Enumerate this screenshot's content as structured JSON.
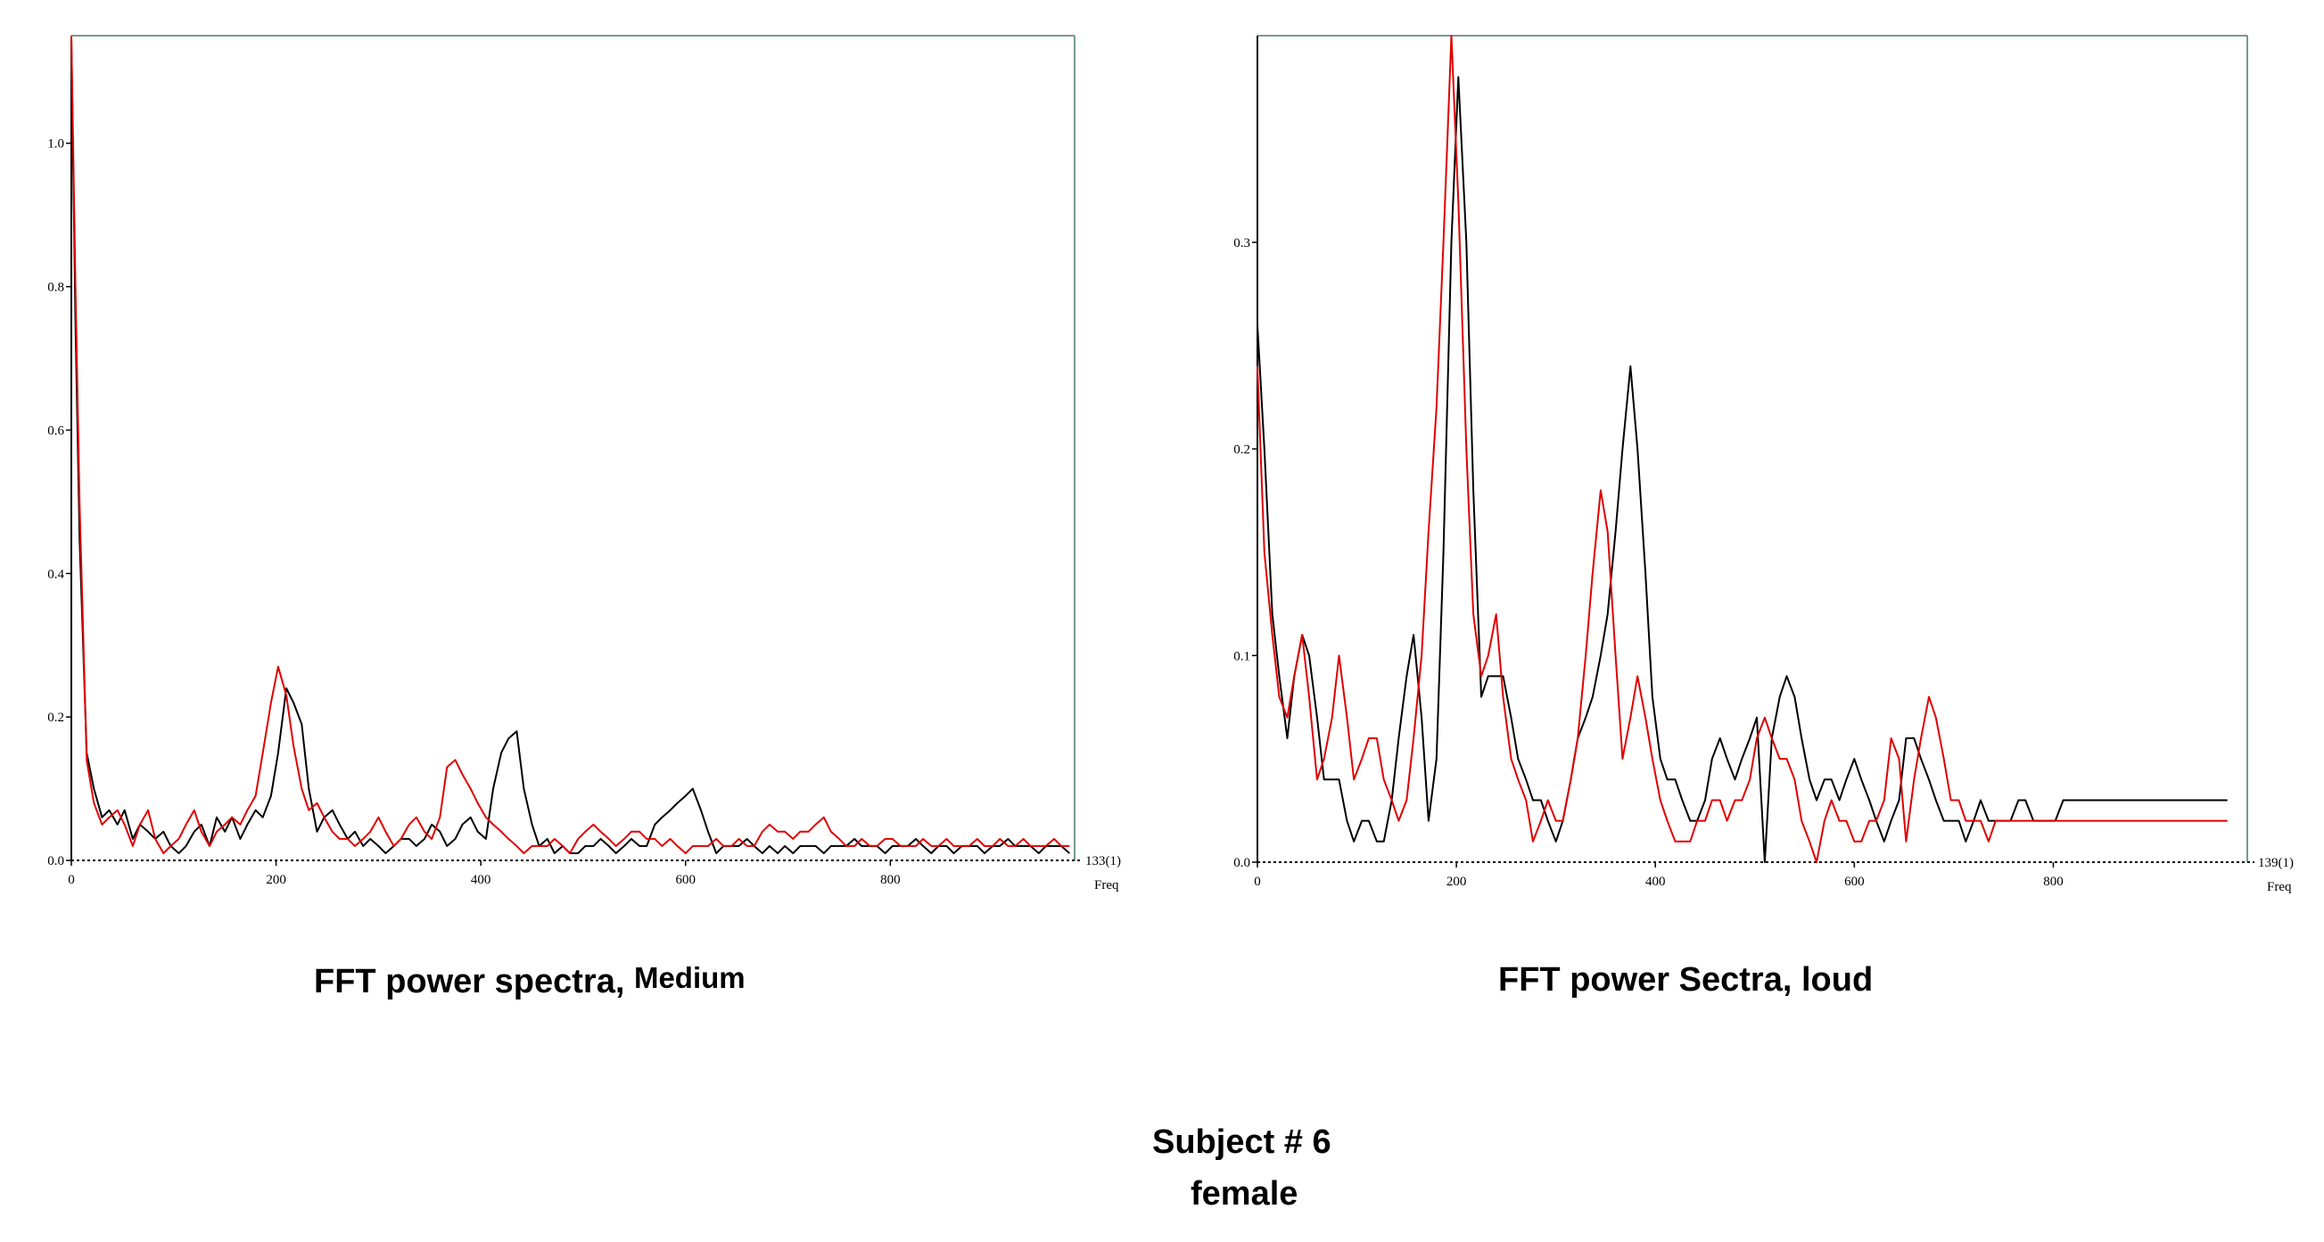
{
  "captions": {
    "left_main": "FFT power spectra,",
    "left_sub": "Medium",
    "right": "FFT power Sectra, loud",
    "subject": "Subject # 6",
    "gender": "female"
  },
  "colors": {
    "series_black": "#000000",
    "series_red": "#e00000",
    "axis": "#4a7a6a"
  },
  "chart_data": [
    {
      "type": "line",
      "caption": "FFT power spectra, Medium",
      "xlabel": "Freq",
      "end_label": "133(1)",
      "xlim": [
        0,
        980
      ],
      "ylim": [
        0,
        1.15
      ],
      "xticks": [
        0,
        200,
        400,
        600,
        800
      ],
      "yticks": [
        0.0,
        0.2,
        0.4,
        0.6,
        0.8,
        1.0
      ],
      "series": [
        {
          "color": "black",
          "x": [
            0,
            4,
            8,
            15,
            22,
            30,
            37,
            45,
            52,
            60,
            67,
            75,
            82,
            90,
            97,
            105,
            112,
            120,
            127,
            135,
            142,
            150,
            157,
            165,
            172,
            180,
            187,
            195,
            202,
            210,
            217,
            225,
            232,
            240,
            247,
            255,
            262,
            270,
            277,
            285,
            292,
            300,
            307,
            315,
            322,
            330,
            337,
            345,
            352,
            360,
            367,
            375,
            382,
            390,
            397,
            405,
            412,
            420,
            427,
            435,
            442,
            450,
            457,
            465,
            472,
            480,
            487,
            495,
            502,
            510,
            517,
            525,
            532,
            540,
            547,
            555,
            562,
            570,
            577,
            585,
            592,
            600,
            607,
            615,
            622,
            630,
            637,
            645,
            652,
            660,
            667,
            675,
            682,
            690,
            697,
            705,
            712,
            720,
            727,
            735,
            742,
            750,
            757,
            765,
            772,
            780,
            787,
            795,
            802,
            810,
            817,
            825,
            832,
            840,
            847,
            855,
            862,
            870,
            877,
            885,
            892,
            900,
            907,
            915,
            922,
            930,
            937,
            945,
            952,
            960,
            967,
            975
          ],
          "y": [
            1.15,
            0.75,
            0.45,
            0.15,
            0.1,
            0.06,
            0.07,
            0.05,
            0.07,
            0.03,
            0.05,
            0.04,
            0.03,
            0.04,
            0.02,
            0.01,
            0.02,
            0.04,
            0.05,
            0.02,
            0.06,
            0.04,
            0.06,
            0.03,
            0.05,
            0.07,
            0.06,
            0.09,
            0.15,
            0.24,
            0.22,
            0.19,
            0.1,
            0.04,
            0.06,
            0.07,
            0.05,
            0.03,
            0.04,
            0.02,
            0.03,
            0.02,
            0.01,
            0.02,
            0.03,
            0.03,
            0.02,
            0.03,
            0.05,
            0.04,
            0.02,
            0.03,
            0.05,
            0.06,
            0.04,
            0.03,
            0.1,
            0.15,
            0.17,
            0.18,
            0.1,
            0.05,
            0.02,
            0.03,
            0.01,
            0.02,
            0.01,
            0.01,
            0.02,
            0.02,
            0.03,
            0.02,
            0.01,
            0.02,
            0.03,
            0.02,
            0.02,
            0.05,
            0.06,
            0.07,
            0.08,
            0.09,
            0.1,
            0.07,
            0.04,
            0.01,
            0.02,
            0.02,
            0.02,
            0.03,
            0.02,
            0.01,
            0.02,
            0.01,
            0.02,
            0.01,
            0.02,
            0.02,
            0.02,
            0.01,
            0.02,
            0.02,
            0.02,
            0.03,
            0.02,
            0.02,
            0.02,
            0.01,
            0.02,
            0.02,
            0.02,
            0.03,
            0.02,
            0.01,
            0.02,
            0.02,
            0.01,
            0.02,
            0.02,
            0.02,
            0.01,
            0.02,
            0.02,
            0.03,
            0.02,
            0.02,
            0.02,
            0.01,
            0.02,
            0.02,
            0.02,
            0.01
          ]
        },
        {
          "color": "red",
          "x": [
            0,
            4,
            8,
            15,
            22,
            30,
            37,
            45,
            52,
            60,
            67,
            75,
            82,
            90,
            97,
            105,
            112,
            120,
            127,
            135,
            142,
            150,
            157,
            165,
            172,
            180,
            187,
            195,
            202,
            210,
            217,
            225,
            232,
            240,
            247,
            255,
            262,
            270,
            277,
            285,
            292,
            300,
            307,
            315,
            322,
            330,
            337,
            345,
            352,
            360,
            367,
            375,
            382,
            390,
            397,
            405,
            412,
            420,
            427,
            435,
            442,
            450,
            457,
            465,
            472,
            480,
            487,
            495,
            502,
            510,
            517,
            525,
            532,
            540,
            547,
            555,
            562,
            570,
            577,
            585,
            592,
            600,
            607,
            615,
            622,
            630,
            637,
            645,
            652,
            660,
            667,
            675,
            682,
            690,
            697,
            705,
            712,
            720,
            727,
            735,
            742,
            750,
            757,
            765,
            772,
            780,
            787,
            795,
            802,
            810,
            817,
            825,
            832,
            840,
            847,
            855,
            862,
            870,
            877,
            885,
            892,
            900,
            907,
            915,
            922,
            930,
            937,
            945,
            952,
            960,
            967,
            975
          ],
          "y": [
            1.15,
            0.8,
            0.5,
            0.14,
            0.08,
            0.05,
            0.06,
            0.07,
            0.05,
            0.02,
            0.05,
            0.07,
            0.03,
            0.01,
            0.02,
            0.03,
            0.05,
            0.07,
            0.04,
            0.02,
            0.04,
            0.05,
            0.06,
            0.05,
            0.07,
            0.09,
            0.15,
            0.22,
            0.27,
            0.23,
            0.16,
            0.1,
            0.07,
            0.08,
            0.06,
            0.04,
            0.03,
            0.03,
            0.02,
            0.03,
            0.04,
            0.06,
            0.04,
            0.02,
            0.03,
            0.05,
            0.06,
            0.04,
            0.03,
            0.06,
            0.13,
            0.14,
            0.12,
            0.1,
            0.08,
            0.06,
            0.05,
            0.04,
            0.03,
            0.02,
            0.01,
            0.02,
            0.02,
            0.02,
            0.03,
            0.02,
            0.01,
            0.03,
            0.04,
            0.05,
            0.04,
            0.03,
            0.02,
            0.03,
            0.04,
            0.04,
            0.03,
            0.03,
            0.02,
            0.03,
            0.02,
            0.01,
            0.02,
            0.02,
            0.02,
            0.03,
            0.02,
            0.02,
            0.03,
            0.02,
            0.02,
            0.04,
            0.05,
            0.04,
            0.04,
            0.03,
            0.04,
            0.04,
            0.05,
            0.06,
            0.04,
            0.03,
            0.02,
            0.02,
            0.03,
            0.02,
            0.02,
            0.03,
            0.03,
            0.02,
            0.02,
            0.02,
            0.03,
            0.02,
            0.02,
            0.03,
            0.02,
            0.02,
            0.02,
            0.03,
            0.02,
            0.02,
            0.03,
            0.02,
            0.02,
            0.03,
            0.02,
            0.02,
            0.02,
            0.03,
            0.02,
            0.02
          ]
        }
      ]
    },
    {
      "type": "line",
      "caption": "FFT power Sectra, loud",
      "xlabel": "Freq",
      "end_label": "139(1)",
      "xlim": [
        0,
        995
      ],
      "ylim": [
        0,
        0.4
      ],
      "xticks": [
        0,
        200,
        400,
        600,
        800
      ],
      "yticks": [
        0.0,
        0.1,
        0.2,
        0.3
      ],
      "series": [
        {
          "color": "black",
          "x": [
            0,
            7,
            15,
            22,
            30,
            37,
            45,
            52,
            60,
            67,
            75,
            82,
            90,
            97,
            105,
            112,
            120,
            127,
            135,
            142,
            150,
            157,
            165,
            172,
            180,
            187,
            195,
            202,
            210,
            217,
            225,
            232,
            240,
            247,
            255,
            262,
            270,
            277,
            285,
            292,
            300,
            307,
            315,
            322,
            330,
            337,
            345,
            352,
            360,
            367,
            375,
            382,
            390,
            397,
            405,
            412,
            420,
            427,
            435,
            442,
            450,
            457,
            465,
            472,
            480,
            487,
            495,
            502,
            510,
            517,
            525,
            532,
            540,
            547,
            555,
            562,
            570,
            577,
            585,
            592,
            600,
            607,
            615,
            622,
            630,
            637,
            645,
            652,
            660,
            667,
            675,
            682,
            690,
            697,
            705,
            712,
            720,
            727,
            735,
            742,
            750,
            757,
            765,
            772,
            780,
            787,
            795,
            802,
            810,
            817,
            825,
            832,
            840,
            847,
            855,
            862,
            870,
            877,
            885,
            892,
            900,
            907,
            915,
            922,
            930,
            937,
            945,
            952,
            960,
            967,
            975
          ],
          "y": [
            0.26,
            0.2,
            0.12,
            0.09,
            0.06,
            0.09,
            0.11,
            0.1,
            0.07,
            0.04,
            0.04,
            0.04,
            0.02,
            0.01,
            0.02,
            0.02,
            0.01,
            0.01,
            0.03,
            0.06,
            0.09,
            0.11,
            0.07,
            0.02,
            0.05,
            0.15,
            0.3,
            0.38,
            0.3,
            0.18,
            0.08,
            0.09,
            0.09,
            0.09,
            0.07,
            0.05,
            0.04,
            0.03,
            0.03,
            0.02,
            0.01,
            0.02,
            0.04,
            0.06,
            0.07,
            0.08,
            0.1,
            0.12,
            0.16,
            0.2,
            0.24,
            0.2,
            0.14,
            0.08,
            0.05,
            0.04,
            0.04,
            0.03,
            0.02,
            0.02,
            0.03,
            0.05,
            0.06,
            0.05,
            0.04,
            0.05,
            0.06,
            0.07,
            0.0,
            0.06,
            0.08,
            0.09,
            0.08,
            0.06,
            0.04,
            0.03,
            0.04,
            0.04,
            0.03,
            0.04,
            0.05,
            0.04,
            0.03,
            0.02,
            0.01,
            0.02,
            0.03,
            0.06,
            0.06,
            0.05,
            0.04,
            0.03,
            0.02,
            0.02,
            0.02,
            0.01,
            0.02,
            0.03,
            0.02,
            0.02,
            0.02,
            0.02,
            0.03,
            0.03,
            0.02,
            0.02,
            0.02,
            0.02,
            0.03,
            0.03,
            0.03,
            0.03,
            0.03,
            0.03,
            0.03,
            0.03,
            0.03,
            0.03,
            0.03,
            0.03,
            0.03,
            0.03,
            0.03,
            0.03,
            0.03,
            0.03,
            0.03,
            0.03,
            0.03,
            0.03,
            0.03
          ]
        },
        {
          "color": "red",
          "x": [
            0,
            7,
            15,
            22,
            30,
            37,
            45,
            52,
            60,
            67,
            75,
            82,
            90,
            97,
            105,
            112,
            120,
            127,
            135,
            142,
            150,
            157,
            165,
            172,
            180,
            187,
            195,
            202,
            210,
            217,
            225,
            232,
            240,
            247,
            255,
            262,
            270,
            277,
            285,
            292,
            300,
            307,
            315,
            322,
            330,
            337,
            345,
            352,
            360,
            367,
            375,
            382,
            390,
            397,
            405,
            412,
            420,
            427,
            435,
            442,
            450,
            457,
            465,
            472,
            480,
            487,
            495,
            502,
            510,
            517,
            525,
            532,
            540,
            547,
            555,
            562,
            570,
            577,
            585,
            592,
            600,
            607,
            615,
            622,
            630,
            637,
            645,
            652,
            660,
            667,
            675,
            682,
            690,
            697,
            705,
            712,
            720,
            727,
            735,
            742,
            750,
            757,
            765,
            772,
            780,
            787,
            795,
            802,
            810,
            817,
            825,
            832,
            840,
            847,
            855,
            862,
            870,
            877,
            885,
            892,
            900,
            907,
            915,
            922,
            930,
            937,
            945,
            952,
            960,
            967,
            975
          ],
          "y": [
            0.24,
            0.15,
            0.11,
            0.08,
            0.07,
            0.09,
            0.11,
            0.08,
            0.04,
            0.05,
            0.07,
            0.1,
            0.07,
            0.04,
            0.05,
            0.06,
            0.06,
            0.04,
            0.03,
            0.02,
            0.03,
            0.06,
            0.1,
            0.16,
            0.22,
            0.3,
            0.4,
            0.32,
            0.2,
            0.12,
            0.09,
            0.1,
            0.12,
            0.08,
            0.05,
            0.04,
            0.03,
            0.01,
            0.02,
            0.03,
            0.02,
            0.02,
            0.04,
            0.06,
            0.1,
            0.14,
            0.18,
            0.16,
            0.1,
            0.05,
            0.07,
            0.09,
            0.07,
            0.05,
            0.03,
            0.02,
            0.01,
            0.01,
            0.01,
            0.02,
            0.02,
            0.03,
            0.03,
            0.02,
            0.03,
            0.03,
            0.04,
            0.06,
            0.07,
            0.06,
            0.05,
            0.05,
            0.04,
            0.02,
            0.01,
            0.0,
            0.02,
            0.03,
            0.02,
            0.02,
            0.01,
            0.01,
            0.02,
            0.02,
            0.03,
            0.06,
            0.05,
            0.01,
            0.04,
            0.06,
            0.08,
            0.07,
            0.05,
            0.03,
            0.03,
            0.02,
            0.02,
            0.02,
            0.01,
            0.02,
            0.02,
            0.02,
            0.02,
            0.02,
            0.02,
            0.02,
            0.02,
            0.02,
            0.02,
            0.02,
            0.02,
            0.02,
            0.02,
            0.02,
            0.02,
            0.02,
            0.02,
            0.02,
            0.02,
            0.02,
            0.02,
            0.02,
            0.02,
            0.02,
            0.02,
            0.02,
            0.02,
            0.02,
            0.02,
            0.02,
            0.02
          ]
        }
      ]
    }
  ]
}
